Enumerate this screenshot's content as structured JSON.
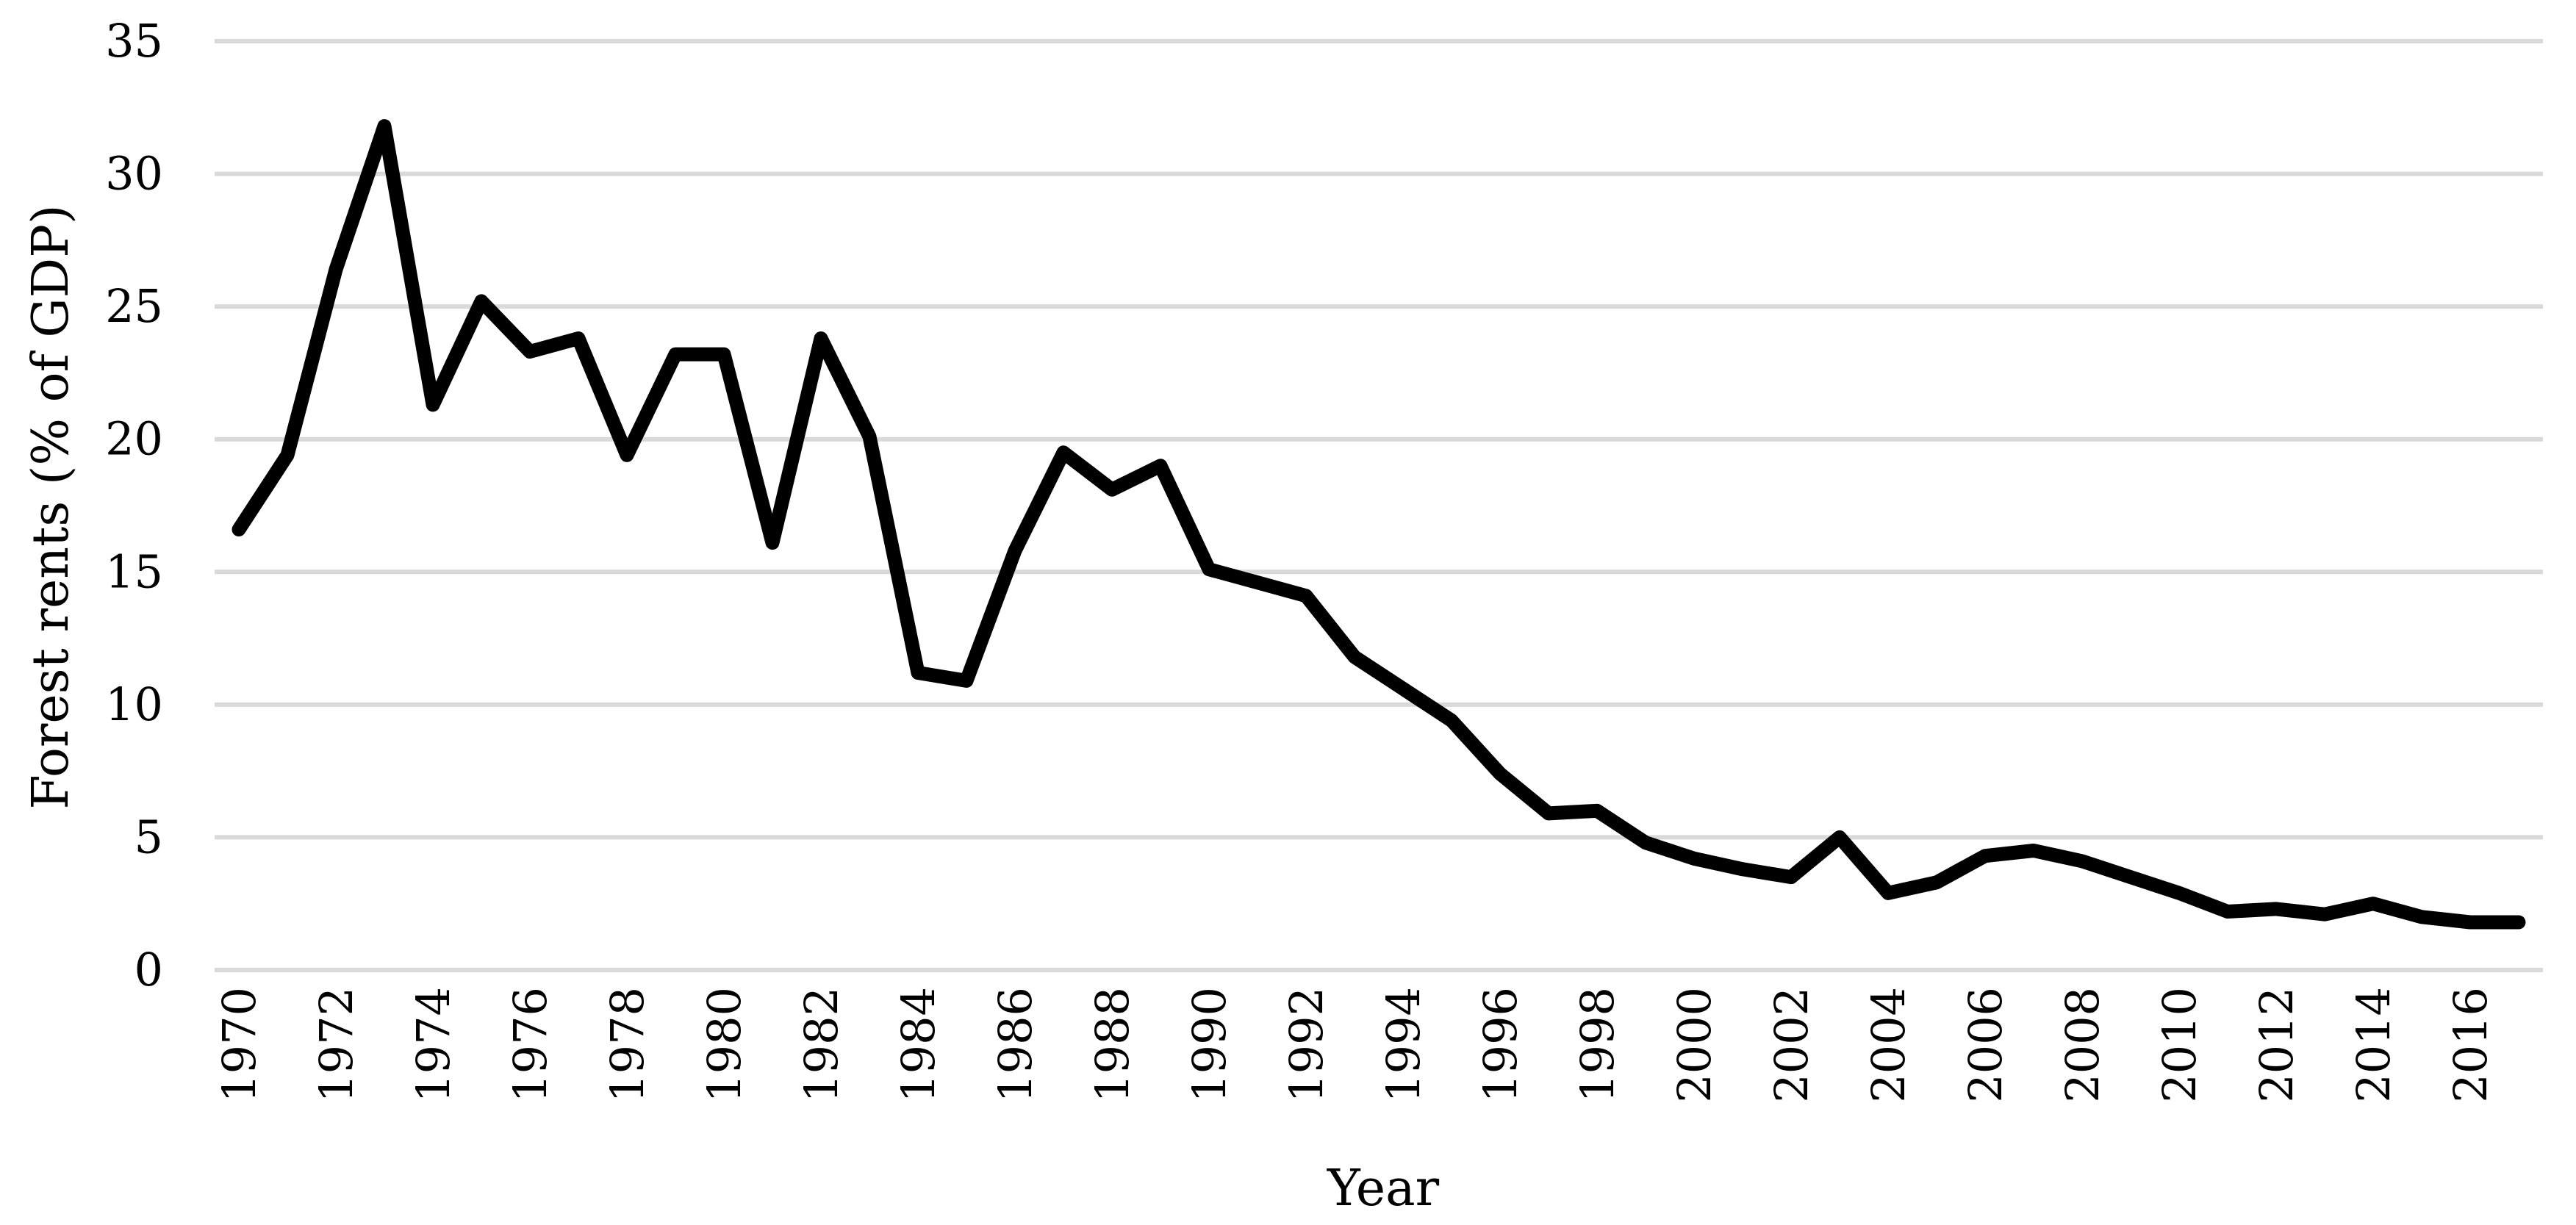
{
  "chart_data": {
    "type": "line",
    "xlabel": "Year",
    "ylabel": "Forest rents (% of GDP)",
    "ylim": [
      0,
      35
    ],
    "yticks": [
      "0",
      "5",
      "10",
      "15",
      "20",
      "25",
      "30",
      "35"
    ],
    "xticks": [
      "1970",
      "1972",
      "1974",
      "1976",
      "1978",
      "1980",
      "1982",
      "1984",
      "1986",
      "1988",
      "1990",
      "1992",
      "1994",
      "1996",
      "1998",
      "2000",
      "2002",
      "2004",
      "2006",
      "2008",
      "2010",
      "2012",
      "2014",
      "2016"
    ],
    "grid": true,
    "legend": "none",
    "series": [
      {
        "color": "#000000",
        "x": [
          1970,
          1971,
          1972,
          1973,
          1974,
          1975,
          1976,
          1977,
          1978,
          1979,
          1980,
          1981,
          1982,
          1983,
          1984,
          1985,
          1986,
          1987,
          1988,
          1989,
          1990,
          1991,
          1992,
          1993,
          1994,
          1995,
          1996,
          1997,
          1998,
          1999,
          2000,
          2001,
          2002,
          2003,
          2004,
          2005,
          2006,
          2007,
          2008,
          2009,
          2010,
          2011,
          2012,
          2013,
          2014,
          2015,
          2016,
          2017
        ],
        "values": [
          16.6,
          19.4,
          26.4,
          31.8,
          21.3,
          25.2,
          23.3,
          23.8,
          19.4,
          23.2,
          23.2,
          16.1,
          23.8,
          20.1,
          11.2,
          10.9,
          15.8,
          19.5,
          18.1,
          19.0,
          15.1,
          14.6,
          14.1,
          11.8,
          10.6,
          9.4,
          7.4,
          5.9,
          6.0,
          4.8,
          4.2,
          3.8,
          3.5,
          5.0,
          2.9,
          3.3,
          4.3,
          4.5,
          4.1,
          3.5,
          2.9,
          2.2,
          2.3,
          2.1,
          2.5,
          2.0,
          1.8,
          1.8
        ]
      }
    ]
  }
}
